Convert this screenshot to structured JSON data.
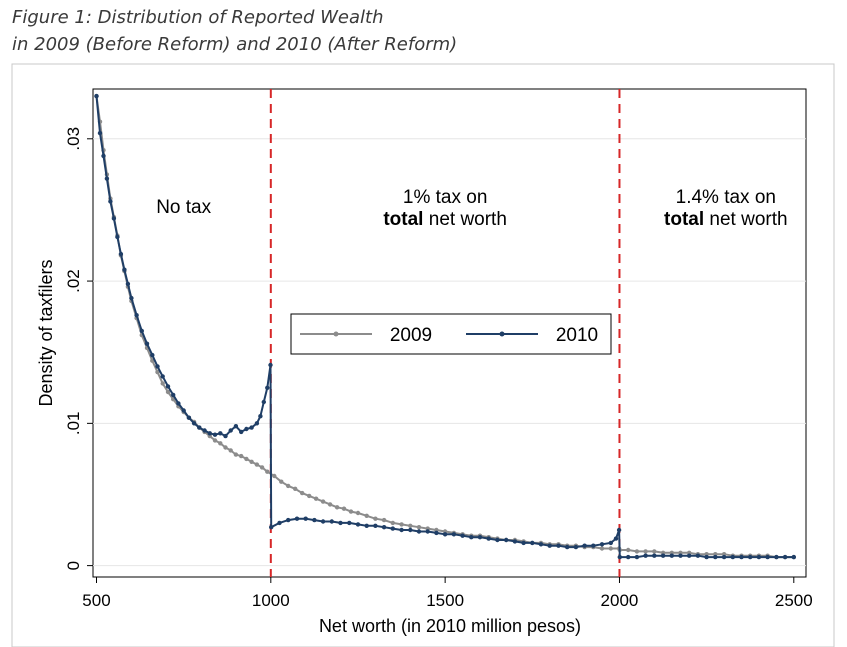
{
  "figure": {
    "title_line1": "Figure 1: Distribution of Reported Wealth",
    "title_line2": "in 2009 (Before Reform) and 2010 (After Reform)"
  },
  "chart_data": {
    "type": "line",
    "xlabel": "Net worth (in 2010 million pesos)",
    "ylabel": "Density of taxfilers",
    "xlim": [
      490,
      2535
    ],
    "ylim": [
      -0.0008,
      0.0335
    ],
    "xticks": [
      500,
      1000,
      1500,
      2000,
      2500
    ],
    "xtick_labels": [
      "500",
      "1000",
      "1500",
      "2000",
      "2500"
    ],
    "yticks": [
      0,
      0.01,
      0.02,
      0.03
    ],
    "ytick_labels": [
      "0",
      ".01",
      ".02",
      ".03"
    ],
    "grid": true,
    "legend_position": "center",
    "thresholds": [
      1000,
      2000
    ],
    "threshold_color": "#d62728",
    "annotations": [
      {
        "id": "no-tax",
        "x": 750,
        "y": 0.0248,
        "lines": [
          [
            {
              "text": "No tax",
              "bold": false
            }
          ]
        ]
      },
      {
        "id": "one-pct",
        "x": 1500,
        "y": 0.0255,
        "lines": [
          [
            {
              "text": "1% tax on",
              "bold": false
            }
          ],
          [
            {
              "text": "total",
              "bold": true
            },
            {
              "text": " net worth",
              "bold": false
            }
          ]
        ]
      },
      {
        "id": "one-four-pct",
        "x": 2305,
        "y": 0.0255,
        "lines": [
          [
            {
              "text": "1.4% tax on",
              "bold": false
            }
          ],
          [
            {
              "text": "total",
              "bold": true
            },
            {
              "text": " net worth",
              "bold": false
            }
          ]
        ]
      }
    ],
    "series": [
      {
        "name": "2009",
        "color": "#8c8c8c",
        "x": [
          500,
          510,
          520,
          530,
          540,
          550,
          560,
          570,
          580,
          590,
          600,
          615,
          630,
          645,
          660,
          675,
          690,
          705,
          720,
          735,
          750,
          765,
          780,
          795,
          810,
          825,
          840,
          855,
          870,
          885,
          900,
          915,
          930,
          945,
          960,
          975,
          990,
          1010,
          1030,
          1050,
          1070,
          1090,
          1110,
          1130,
          1150,
          1170,
          1190,
          1210,
          1230,
          1250,
          1275,
          1300,
          1325,
          1350,
          1375,
          1400,
          1425,
          1450,
          1475,
          1500,
          1525,
          1550,
          1575,
          1600,
          1625,
          1650,
          1675,
          1700,
          1725,
          1750,
          1775,
          1800,
          1825,
          1850,
          1875,
          1900,
          1925,
          1950,
          1975,
          1999,
          2001,
          2025,
          2050,
          2075,
          2100,
          2125,
          2150,
          2175,
          2200,
          2225,
          2250,
          2275,
          2300,
          2325,
          2350,
          2375,
          2400,
          2425,
          2450,
          2475,
          2500
        ],
        "values": [
          0.033,
          0.0312,
          0.0292,
          0.0275,
          0.0258,
          0.0245,
          0.0232,
          0.0218,
          0.0207,
          0.0196,
          0.0186,
          0.0174,
          0.0162,
          0.0153,
          0.0144,
          0.0136,
          0.0128,
          0.0122,
          0.0117,
          0.0112,
          0.0108,
          0.0104,
          0.0101,
          0.0097,
          0.0094,
          0.0091,
          0.0088,
          0.0086,
          0.0083,
          0.0081,
          0.0078,
          0.0077,
          0.0075,
          0.0073,
          0.0071,
          0.0069,
          0.0066,
          0.0063,
          0.0059,
          0.0056,
          0.0054,
          0.0051,
          0.0049,
          0.0047,
          0.0045,
          0.0043,
          0.0041,
          0.004,
          0.0038,
          0.0037,
          0.0035,
          0.0033,
          0.0032,
          0.003,
          0.0029,
          0.0028,
          0.0027,
          0.0026,
          0.0025,
          0.0024,
          0.0023,
          0.0022,
          0.0021,
          0.0021,
          0.002,
          0.0019,
          0.0018,
          0.0018,
          0.0017,
          0.0016,
          0.0016,
          0.0015,
          0.0015,
          0.0014,
          0.0014,
          0.0013,
          0.0013,
          0.0012,
          0.0012,
          0.0012,
          0.0011,
          0.0011,
          0.001,
          0.001,
          0.001,
          0.0009,
          0.0009,
          0.0009,
          0.0009,
          0.0008,
          0.0008,
          0.0008,
          0.0008,
          0.0007,
          0.0007,
          0.0007,
          0.0007,
          0.0007,
          0.0006,
          0.0006,
          0.0006
        ]
      },
      {
        "name": "2010",
        "color": "#1f3e66",
        "x": [
          500,
          510,
          520,
          530,
          540,
          550,
          560,
          570,
          580,
          590,
          600,
          615,
          630,
          645,
          660,
          675,
          690,
          705,
          720,
          735,
          750,
          765,
          780,
          795,
          810,
          825,
          840,
          855,
          870,
          885,
          900,
          915,
          930,
          945,
          960,
          970,
          980,
          990,
          999,
          1001,
          1025,
          1050,
          1075,
          1100,
          1125,
          1150,
          1175,
          1200,
          1225,
          1250,
          1275,
          1300,
          1325,
          1350,
          1375,
          1400,
          1425,
          1450,
          1475,
          1500,
          1525,
          1550,
          1575,
          1600,
          1625,
          1650,
          1675,
          1700,
          1725,
          1750,
          1775,
          1800,
          1825,
          1850,
          1875,
          1900,
          1925,
          1950,
          1975,
          1990,
          1999,
          2001,
          2025,
          2050,
          2075,
          2100,
          2125,
          2150,
          2175,
          2200,
          2225,
          2250,
          2275,
          2300,
          2325,
          2350,
          2375,
          2400,
          2425,
          2450,
          2475,
          2500
        ],
        "values": [
          0.033,
          0.0304,
          0.0288,
          0.0272,
          0.0256,
          0.0244,
          0.0231,
          0.0219,
          0.0208,
          0.0198,
          0.0188,
          0.0176,
          0.0165,
          0.0156,
          0.0148,
          0.014,
          0.0133,
          0.0126,
          0.012,
          0.0114,
          0.0109,
          0.0104,
          0.01,
          0.0097,
          0.0095,
          0.0093,
          0.0092,
          0.0093,
          0.0091,
          0.0095,
          0.0098,
          0.0094,
          0.0096,
          0.0097,
          0.01,
          0.0105,
          0.0115,
          0.0125,
          0.0141,
          0.0027,
          0.003,
          0.0032,
          0.0033,
          0.0033,
          0.0032,
          0.0031,
          0.0031,
          0.003,
          0.003,
          0.0029,
          0.0028,
          0.0028,
          0.0027,
          0.0026,
          0.0025,
          0.0025,
          0.0024,
          0.0024,
          0.0023,
          0.0022,
          0.0022,
          0.0021,
          0.002,
          0.002,
          0.0019,
          0.0018,
          0.0018,
          0.0017,
          0.0016,
          0.0016,
          0.0015,
          0.0014,
          0.0014,
          0.0013,
          0.0013,
          0.0014,
          0.0014,
          0.0015,
          0.0016,
          0.0019,
          0.0025,
          0.0006,
          0.0006,
          0.0006,
          0.0007,
          0.0007,
          0.0007,
          0.0007,
          0.0007,
          0.0007,
          0.0007,
          0.0006,
          0.0006,
          0.0006,
          0.0006,
          0.0006,
          0.0006,
          0.0006,
          0.0006,
          0.0006,
          0.0006,
          0.0006
        ]
      }
    ]
  }
}
